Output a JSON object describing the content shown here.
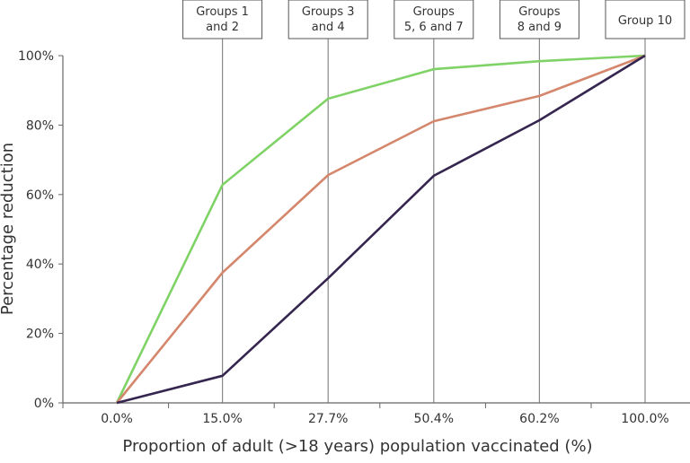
{
  "chart_data": {
    "type": "line",
    "title": "",
    "xlabel": "Proportion of adult (>18 years) population vaccinated (%)",
    "ylabel": "Percentage reduction",
    "categories": [
      "0.0%",
      "15.0%",
      "27.7%",
      "50.4%",
      "60.2%",
      "100.0%"
    ],
    "group_labels": [
      {
        "category": "15.0%",
        "lines": [
          "Groups 1",
          "and 2"
        ]
      },
      {
        "category": "27.7%",
        "lines": [
          "Groups 3",
          "and 4"
        ]
      },
      {
        "category": "50.4%",
        "lines": [
          "Groups",
          "5, 6 and 7"
        ]
      },
      {
        "category": "60.2%",
        "lines": [
          "Groups",
          "8 and 9"
        ]
      },
      {
        "category": "100.0%",
        "lines": [
          "Group 10"
        ]
      }
    ],
    "ylim": [
      0,
      100
    ],
    "yticks": [
      "0%",
      "20%",
      "40%",
      "60%",
      "80%",
      "100%"
    ],
    "grid": false,
    "series": [
      {
        "color": "#7fd366",
        "values": [
          0,
          62.8,
          87.6,
          96.1,
          98.4,
          100
        ]
      },
      {
        "color": "#d4876c",
        "values": [
          0,
          37.5,
          65.6,
          81.1,
          88.4,
          100
        ]
      },
      {
        "color": "#35264f",
        "values": [
          0,
          7.8,
          35.9,
          65.4,
          81.4,
          100
        ]
      }
    ]
  }
}
